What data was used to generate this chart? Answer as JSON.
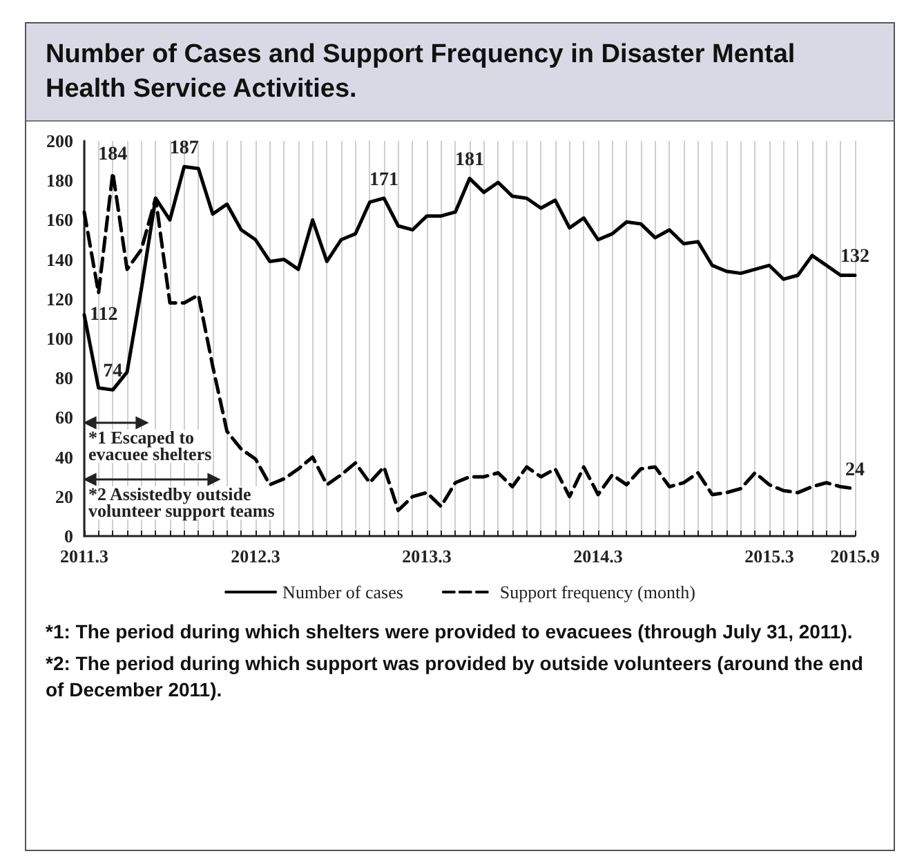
{
  "chart_data": {
    "type": "line",
    "title": "Number of Cases and Support Frequency in Disaster Mental Health Service Activities.",
    "categories": [
      "2011.3",
      null,
      null,
      null,
      null,
      null,
      null,
      null,
      null,
      null,
      null,
      null,
      "2012.3",
      null,
      null,
      null,
      null,
      null,
      null,
      null,
      null,
      null,
      null,
      null,
      "2013.3",
      null,
      null,
      null,
      null,
      null,
      null,
      null,
      null,
      null,
      null,
      null,
      "2014.3",
      null,
      null,
      null,
      null,
      null,
      null,
      null,
      null,
      null,
      null,
      null,
      "2015.3",
      null,
      null,
      null,
      null,
      null,
      "2015.9"
    ],
    "series": [
      {
        "name": "Number of cases",
        "color": "#000000",
        "line_style": "solid",
        "values": [
          112,
          75,
          74,
          83,
          125,
          171,
          160,
          187,
          186,
          163,
          168,
          155,
          150,
          139,
          140,
          135,
          160,
          139,
          150,
          153,
          169,
          171,
          157,
          155,
          162,
          162,
          164,
          181,
          174,
          179,
          172,
          171,
          166,
          170,
          156,
          161,
          150,
          153,
          159,
          158,
          151,
          155,
          148,
          149,
          137,
          134,
          133,
          135,
          137,
          130,
          132,
          142,
          137,
          132,
          132
        ],
        "value_labels": [
          "112",
          null,
          "74",
          null,
          null,
          null,
          null,
          "187",
          null,
          null,
          null,
          null,
          null,
          null,
          null,
          null,
          null,
          null,
          null,
          null,
          null,
          "171",
          null,
          null,
          null,
          null,
          null,
          "181",
          null,
          null,
          null,
          null,
          null,
          null,
          null,
          null,
          null,
          null,
          null,
          null,
          null,
          null,
          null,
          null,
          null,
          null,
          null,
          null,
          null,
          null,
          null,
          null,
          null,
          null,
          "132"
        ]
      },
      {
        "name": "Support frequency (month)",
        "color": "#000000",
        "line_style": "dashed",
        "values": [
          164,
          123,
          184,
          135,
          145,
          171,
          118,
          118,
          122,
          86,
          53,
          44,
          39,
          26,
          29,
          34,
          40,
          26,
          31,
          37,
          27,
          35,
          13,
          20,
          22,
          15,
          27,
          30,
          30,
          32,
          25,
          35,
          30,
          34,
          20,
          35,
          21,
          31,
          26,
          34,
          35,
          25,
          27,
          32,
          21,
          22,
          24,
          32,
          26,
          23,
          22,
          25,
          27,
          25,
          24
        ],
        "value_labels": [
          null,
          null,
          "184",
          null,
          null,
          null,
          null,
          null,
          null,
          null,
          null,
          null,
          null,
          null,
          null,
          null,
          null,
          null,
          null,
          null,
          null,
          null,
          null,
          null,
          null,
          null,
          null,
          null,
          null,
          null,
          null,
          null,
          null,
          null,
          null,
          null,
          null,
          null,
          null,
          null,
          null,
          null,
          null,
          null,
          null,
          null,
          null,
          null,
          null,
          null,
          null,
          null,
          null,
          null,
          "24"
        ]
      }
    ],
    "ylim": [
      0,
      200
    ],
    "yticks": [
      0,
      20,
      40,
      60,
      80,
      100,
      120,
      140,
      160,
      180,
      200
    ],
    "grid": "x",
    "legend": "bottom",
    "marker": "none",
    "annotations": [
      "*1 Escaped to\nevacuee shelters",
      "*2 Assistedby outside\nvolunteer support teams",
      "*1: The period during which shelters were provided to evacuees (through July 31, 2011).",
      "*2: The period during which support was provided by outside volunteers (around the end of December 2011)."
    ]
  }
}
